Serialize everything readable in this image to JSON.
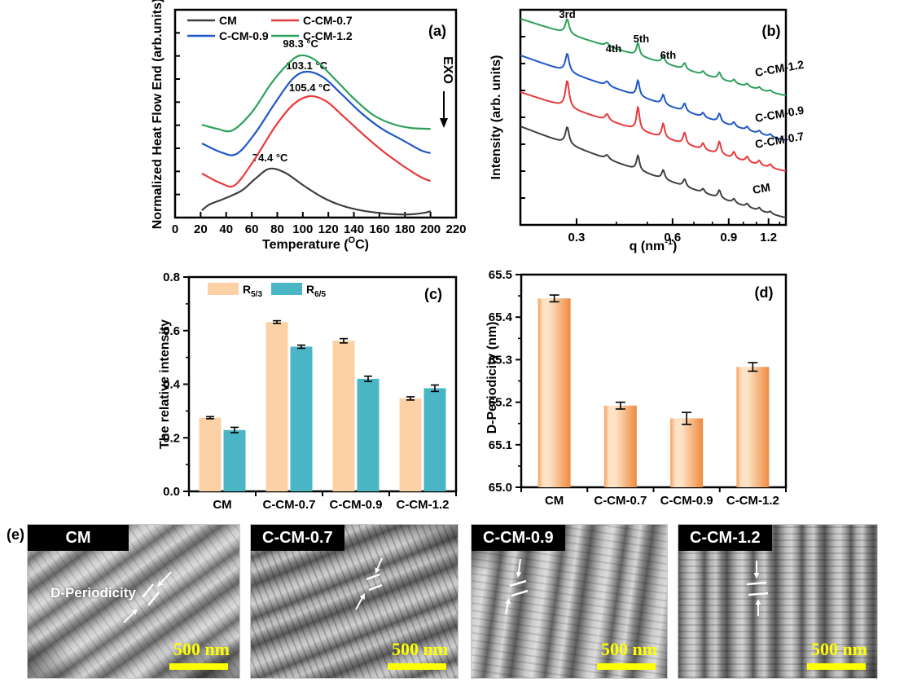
{
  "chart_data": [
    {
      "panel": "(a)",
      "type": "line",
      "xlabel_parts": [
        "Temperature (",
        "O",
        "C)"
      ],
      "ylabel": "Normalized Heat Flow End (arb.units)",
      "exo_label": "EXO",
      "xlim": [
        0,
        220
      ],
      "xticks": [
        0,
        20,
        40,
        60,
        80,
        100,
        120,
        140,
        160,
        180,
        200,
        220
      ],
      "legend_columns": [
        [
          "CM",
          "C-CM-0.9"
        ],
        [
          "C-CM-0.7",
          "C-CM-1.2"
        ]
      ],
      "series": [
        {
          "name": "CM",
          "color": "#3f3f3f",
          "peak_label": "74.4 °C",
          "peak_temp": 74.4,
          "label_y": 0.271,
          "points": [
            [
              21,
              0.035
            ],
            [
              27,
              0.063
            ],
            [
              38,
              0.09
            ],
            [
              52,
              0.129
            ],
            [
              63,
              0.188
            ],
            [
              74,
              0.235
            ],
            [
              86,
              0.216
            ],
            [
              100,
              0.157
            ],
            [
              114,
              0.102
            ],
            [
              128,
              0.063
            ],
            [
              142,
              0.039
            ],
            [
              157,
              0.024
            ],
            [
              172,
              0.016
            ],
            [
              186,
              0.016
            ],
            [
              196,
              0.024
            ],
            [
              200,
              0.031
            ]
          ]
        },
        {
          "name": "C-CM-0.7",
          "color": "#e8393b",
          "peak_label": "105.4 °C",
          "peak_temp": 105.4,
          "label_y": 0.608,
          "points": [
            [
              21,
              0.212
            ],
            [
              36,
              0.165
            ],
            [
              47,
              0.157
            ],
            [
              62,
              0.278
            ],
            [
              78,
              0.435
            ],
            [
              92,
              0.541
            ],
            [
              105,
              0.584
            ],
            [
              118,
              0.561
            ],
            [
              132,
              0.486
            ],
            [
              148,
              0.396
            ],
            [
              163,
              0.318
            ],
            [
              178,
              0.251
            ],
            [
              192,
              0.196
            ],
            [
              200,
              0.176
            ]
          ]
        },
        {
          "name": "C-CM-0.9",
          "color": "#2057c7",
          "peak_label": "103.1 °C",
          "peak_temp": 103.1,
          "label_y": 0.714,
          "points": [
            [
              21,
              0.357
            ],
            [
              36,
              0.314
            ],
            [
              48,
              0.306
            ],
            [
              62,
              0.4
            ],
            [
              78,
              0.549
            ],
            [
              92,
              0.667
            ],
            [
              103,
              0.702
            ],
            [
              116,
              0.675
            ],
            [
              130,
              0.596
            ],
            [
              146,
              0.502
            ],
            [
              162,
              0.427
            ],
            [
              178,
              0.373
            ],
            [
              192,
              0.325
            ],
            [
              200,
              0.31
            ]
          ]
        },
        {
          "name": "C-CM-1.2",
          "color": "#2ca05a",
          "peak_label": "98.3 °C",
          "peak_temp": 98.3,
          "label_y": 0.82,
          "points": [
            [
              21,
              0.447
            ],
            [
              33,
              0.427
            ],
            [
              45,
              0.42
            ],
            [
              60,
              0.506
            ],
            [
              75,
              0.643
            ],
            [
              88,
              0.737
            ],
            [
              98,
              0.78
            ],
            [
              110,
              0.757
            ],
            [
              125,
              0.667
            ],
            [
              140,
              0.573
            ],
            [
              155,
              0.494
            ],
            [
              170,
              0.451
            ],
            [
              185,
              0.431
            ],
            [
              200,
              0.427
            ]
          ]
        }
      ]
    },
    {
      "panel": "(b)",
      "type": "line",
      "xscale": "log",
      "xlabel_parts": [
        "q (nm",
        "-1",
        ")"
      ],
      "ylabel": "Intensity (arb. units)",
      "xlim": [
        0.2,
        1.36
      ],
      "xticks": [
        0.3,
        0.6,
        0.9,
        1.2
      ],
      "minor_xticks": [
        0.2,
        0.3,
        0.4,
        0.5,
        0.6,
        0.7,
        0.8,
        0.9,
        1.0,
        1.1,
        1.2,
        1.3
      ],
      "fundamental_q": 0.0935,
      "peak_orders": [
        3,
        4,
        5,
        6,
        7,
        8,
        9,
        10,
        11,
        12,
        13
      ],
      "peak_heights": [
        30,
        7,
        26,
        16,
        13,
        7,
        14,
        7,
        6,
        5,
        4
      ],
      "peak_labels": [
        {
          "text": "3rd",
          "order": 3,
          "y": 22,
          "dx": 0
        },
        {
          "text": "4th",
          "order": 4,
          "y": 64,
          "dx": 8
        },
        {
          "text": "5th",
          "order": 5,
          "y": 52,
          "dx": 4
        },
        {
          "text": "6th",
          "order": 6,
          "y": 72,
          "dx": 6
        }
      ],
      "series": [
        {
          "name": "C-CM-1.2",
          "color": "#2ca05a",
          "y_start": 0.958,
          "y_end": 0.602,
          "amp": 0.6,
          "label_xy": [
            328,
            94
          ]
        },
        {
          "name": "C-CM-0.9",
          "color": "#2057c7",
          "y_start": 0.788,
          "y_end": 0.394,
          "amp": 0.75,
          "label_xy": [
            328,
            150
          ]
        },
        {
          "name": "C-CM-0.7",
          "color": "#e8393b",
          "y_start": 0.617,
          "y_end": 0.25,
          "amp": 1.1,
          "label_xy": [
            328,
            182
          ]
        },
        {
          "name": "CM",
          "color": "#3f3f3f",
          "y_start": 0.458,
          "y_end": 0.034,
          "amp": 0.7,
          "label_xy": [
            325,
            238
          ]
        }
      ]
    },
    {
      "panel": "(c)",
      "type": "bar",
      "ylabel": "The relative intensity",
      "ylim": [
        0,
        0.8
      ],
      "yticks": [
        0.0,
        0.2,
        0.4,
        0.6,
        0.8
      ],
      "categories": [
        "CM",
        "C-CM-0.7",
        "C-CM-0.9",
        "C-CM-1.2"
      ],
      "series": [
        {
          "label_base": "R",
          "label_sub": "5/3",
          "color": "#fbd1a5",
          "values": [
            0.275,
            0.632,
            0.562,
            0.347
          ],
          "errors": [
            0.004,
            0.005,
            0.008,
            0.006
          ]
        },
        {
          "label_base": "R",
          "label_sub": "6/5",
          "color": "#4ab5c4",
          "values": [
            0.229,
            0.54,
            0.42,
            0.385
          ],
          "errors": [
            0.01,
            0.006,
            0.01,
            0.012
          ]
        }
      ]
    },
    {
      "panel": "(d)",
      "type": "bar",
      "ylabel": "D-Periodicity (nm)",
      "ylim": [
        65.0,
        65.5
      ],
      "ytick_labels": [
        "65.0",
        "65.1",
        "65.2",
        "65.3",
        "65.4",
        "65.5"
      ],
      "categories": [
        "CM",
        "C-CM-0.7",
        "C-CM-0.9",
        "C-CM-1.2"
      ],
      "values": [
        65.444,
        65.192,
        65.162,
        65.283
      ],
      "errors": [
        0.008,
        0.008,
        0.014,
        0.01
      ],
      "bar_gradient": [
        "#F5A15C",
        "#FDE2C6",
        "#EF8A3E"
      ]
    }
  ],
  "panel_e": {
    "label": "(e)",
    "annotation": "D-Periodicity",
    "images": [
      {
        "title": "CM",
        "scale_bar": "500 nm"
      },
      {
        "title": "C-CM-0.7",
        "scale_bar": "500 nm"
      },
      {
        "title": "C-CM-0.9",
        "scale_bar": "500 nm"
      },
      {
        "title": "C-CM-1.2",
        "scale_bar": "500 nm"
      }
    ]
  }
}
